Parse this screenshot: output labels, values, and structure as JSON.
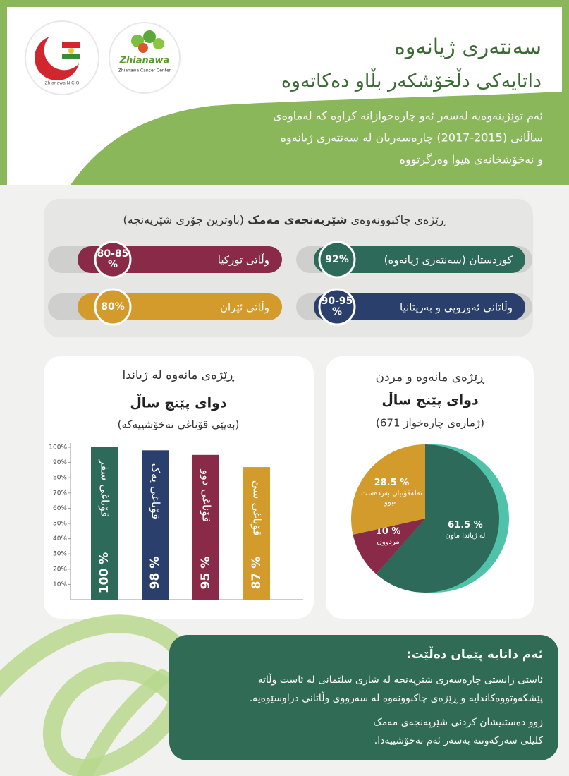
{
  "header": {
    "title": "سەنتەری ژیانەوە",
    "subtitle": "داتایەکی دڵخۆشکەر بڵاو دەکاتەوە",
    "intro": [
      "ئەم توێژینەوەیە لەسەر ئەو چارەخوازانە کراوە کە لەماوەی",
      "ساڵانی (2015-2017) چارەسەریان لە سەنتەری ژیانەوە",
      "و نەخۆشخانەی هیوا وەرگرتووە"
    ],
    "logos": [
      "Zhianawa N.G.O",
      "Zhianawa",
      "Zhianawa Cancer Center"
    ]
  },
  "recovery": {
    "title": [
      "ڕێژەی چاکبوونەوەی",
      "شێرپەنجەی مەمک",
      "(باوترین جۆری شێرپەنجە)"
    ],
    "items": [
      {
        "label": "کوردستان (سەنتەری ژیانەوە)",
        "value": "92%",
        "color": "#2e6a5a"
      },
      {
        "label": "وڵاتی تورکیا",
        "value": "80-85 %",
        "color": "#8a2a49"
      },
      {
        "label": "وڵاتانی ئەوروپی و بەریتانیا",
        "value": "90-95 %",
        "color": "#2a3f6b"
      },
      {
        "label": "وڵاتی ئێران",
        "value": "80%",
        "color": "#d39a2c"
      }
    ]
  },
  "chart_data": [
    {
      "type": "bar",
      "title": "ڕێژەی مانەوە لە ژیاندا",
      "subtitle": "دوای پێنج ساڵ",
      "note": "(بەپێی قۆناغی نەخۆشییەکە)",
      "categories": [
        "قۆناغی سفر",
        "قۆناغی یەک",
        "قۆناغی دوو",
        "قۆناغی سێ"
      ],
      "values": [
        100,
        98,
        95,
        87
      ],
      "value_labels": [
        "100 %",
        "98 %",
        "95 %",
        "87 %"
      ],
      "colors": [
        "#2e6a5a",
        "#2a3f6b",
        "#8a2a49",
        "#d39a2c"
      ],
      "ylim": [
        0,
        100
      ],
      "yticks": [
        {
          "value": 10,
          "label": "10%"
        },
        {
          "value": 20,
          "label": "20%"
        },
        {
          "value": 30,
          "label": "30%"
        },
        {
          "value": 40,
          "label": "40%"
        },
        {
          "value": 50,
          "label": "50%"
        },
        {
          "value": 60,
          "label": "60%"
        },
        {
          "value": 70,
          "label": "70%"
        },
        {
          "value": 80,
          "label": "80%"
        },
        {
          "value": 90,
          "label": "90%"
        },
        {
          "value": 100,
          "label": "100%"
        }
      ]
    },
    {
      "type": "pie",
      "title": "ڕێژەی مانەوە و مردن",
      "subtitle": "دوای پێنج ساڵ",
      "note": "(ژمارەی چارەخواز 671)",
      "categories": [
        "لە ژیاندا ماون",
        "مردوون",
        "تەلەفۆنیان بەردەست نەبوو"
      ],
      "values": [
        61.5,
        10,
        28.5
      ],
      "value_labels": [
        "61.5 %",
        "10 %",
        "28.5 %"
      ],
      "colors": [
        "#2e6a5a",
        "#8a2a49",
        "#d39a2c"
      ]
    }
  ],
  "conclusion": {
    "title": "ئەم داتایە پێمان دەڵێت:",
    "points": [
      [
        "ئاستی زانستی چارەسەری شێرپەنجە لە شاری سلێمانی لە ئاست وڵاتە",
        "پێشکەوتووەکاندایە و ڕێژەی چاکبوونەوە لە سەرووی وڵاتانی دراوسێوەیە."
      ],
      [
        "زوو دەستنیشان کردنی شێرپەنجەی مەمک",
        "کلیلی سەرکەوتنە بەسەر ئەم نەخۆشییەدا."
      ]
    ]
  }
}
